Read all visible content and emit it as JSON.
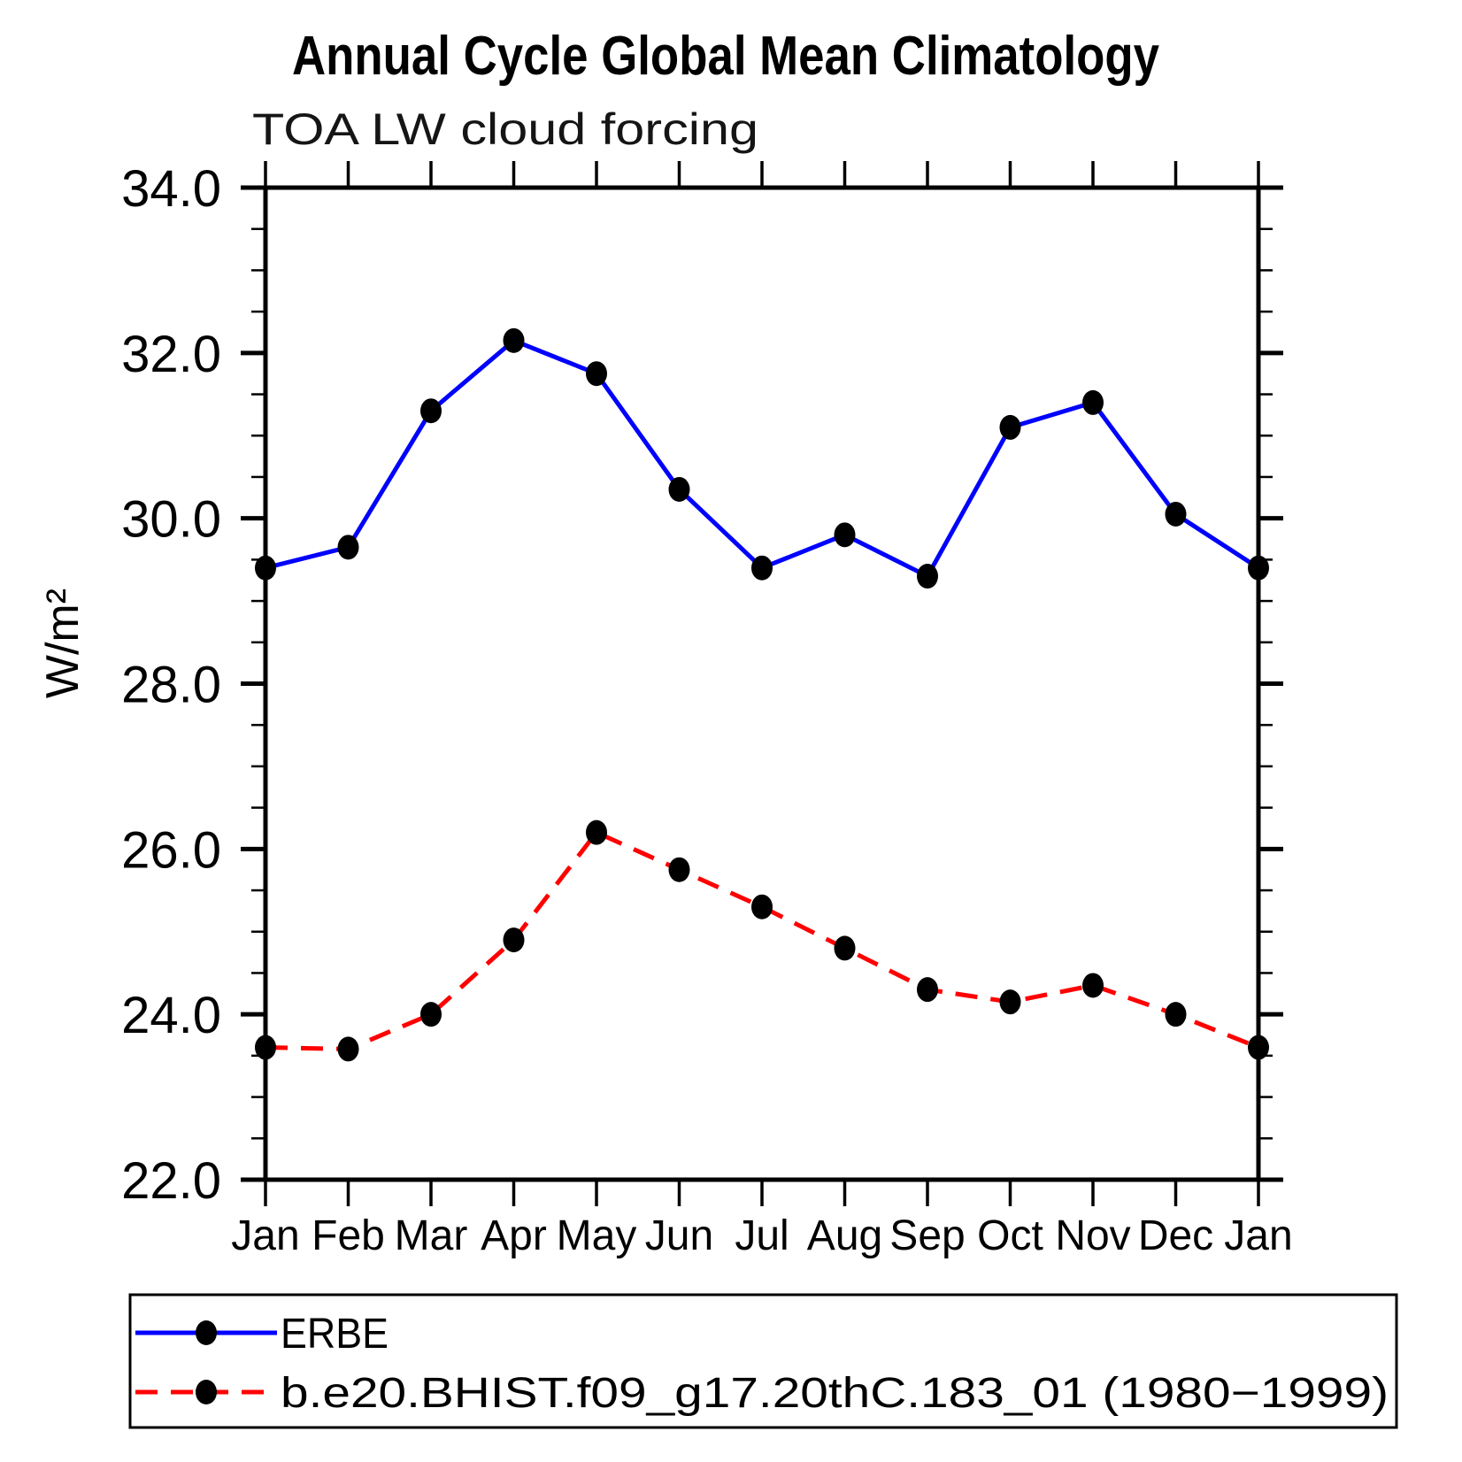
{
  "chart_data": {
    "type": "line",
    "title": "Annual Cycle Global Mean Climatology",
    "subtitle": "TOA LW cloud forcing",
    "ylabel": "W/m²",
    "ylim": [
      22.0,
      34.0
    ],
    "ytick_step_major": 2.0,
    "ytick_step_minor": 0.5,
    "ytick_labels": [
      "22.0",
      "24.0",
      "26.0",
      "28.0",
      "30.0",
      "32.0",
      "34.0"
    ],
    "categories": [
      "Jan",
      "Feb",
      "Mar",
      "Apr",
      "May",
      "Jun",
      "Jul",
      "Aug",
      "Sep",
      "Oct",
      "Nov",
      "Dec",
      "Jan"
    ],
    "grid": false,
    "legend_position": "bottom-left",
    "axis_color": "#000000",
    "marker_color": "#000000",
    "series": [
      {
        "name": "ERBE",
        "color": "#0000ff",
        "line_style": "solid",
        "values": [
          29.4,
          29.65,
          31.3,
          32.15,
          31.75,
          30.35,
          29.4,
          29.8,
          29.3,
          31.1,
          31.4,
          30.05,
          29.4
        ]
      },
      {
        "name": "b.e20.BHIST.f09_g17.20thC.183_01 (1980−1999)",
        "color": "#ff0000",
        "line_style": "dashed",
        "values": [
          23.6,
          23.58,
          24.0,
          24.9,
          26.2,
          25.75,
          25.3,
          24.8,
          24.3,
          24.15,
          24.35,
          24.0,
          23.6
        ]
      }
    ]
  }
}
